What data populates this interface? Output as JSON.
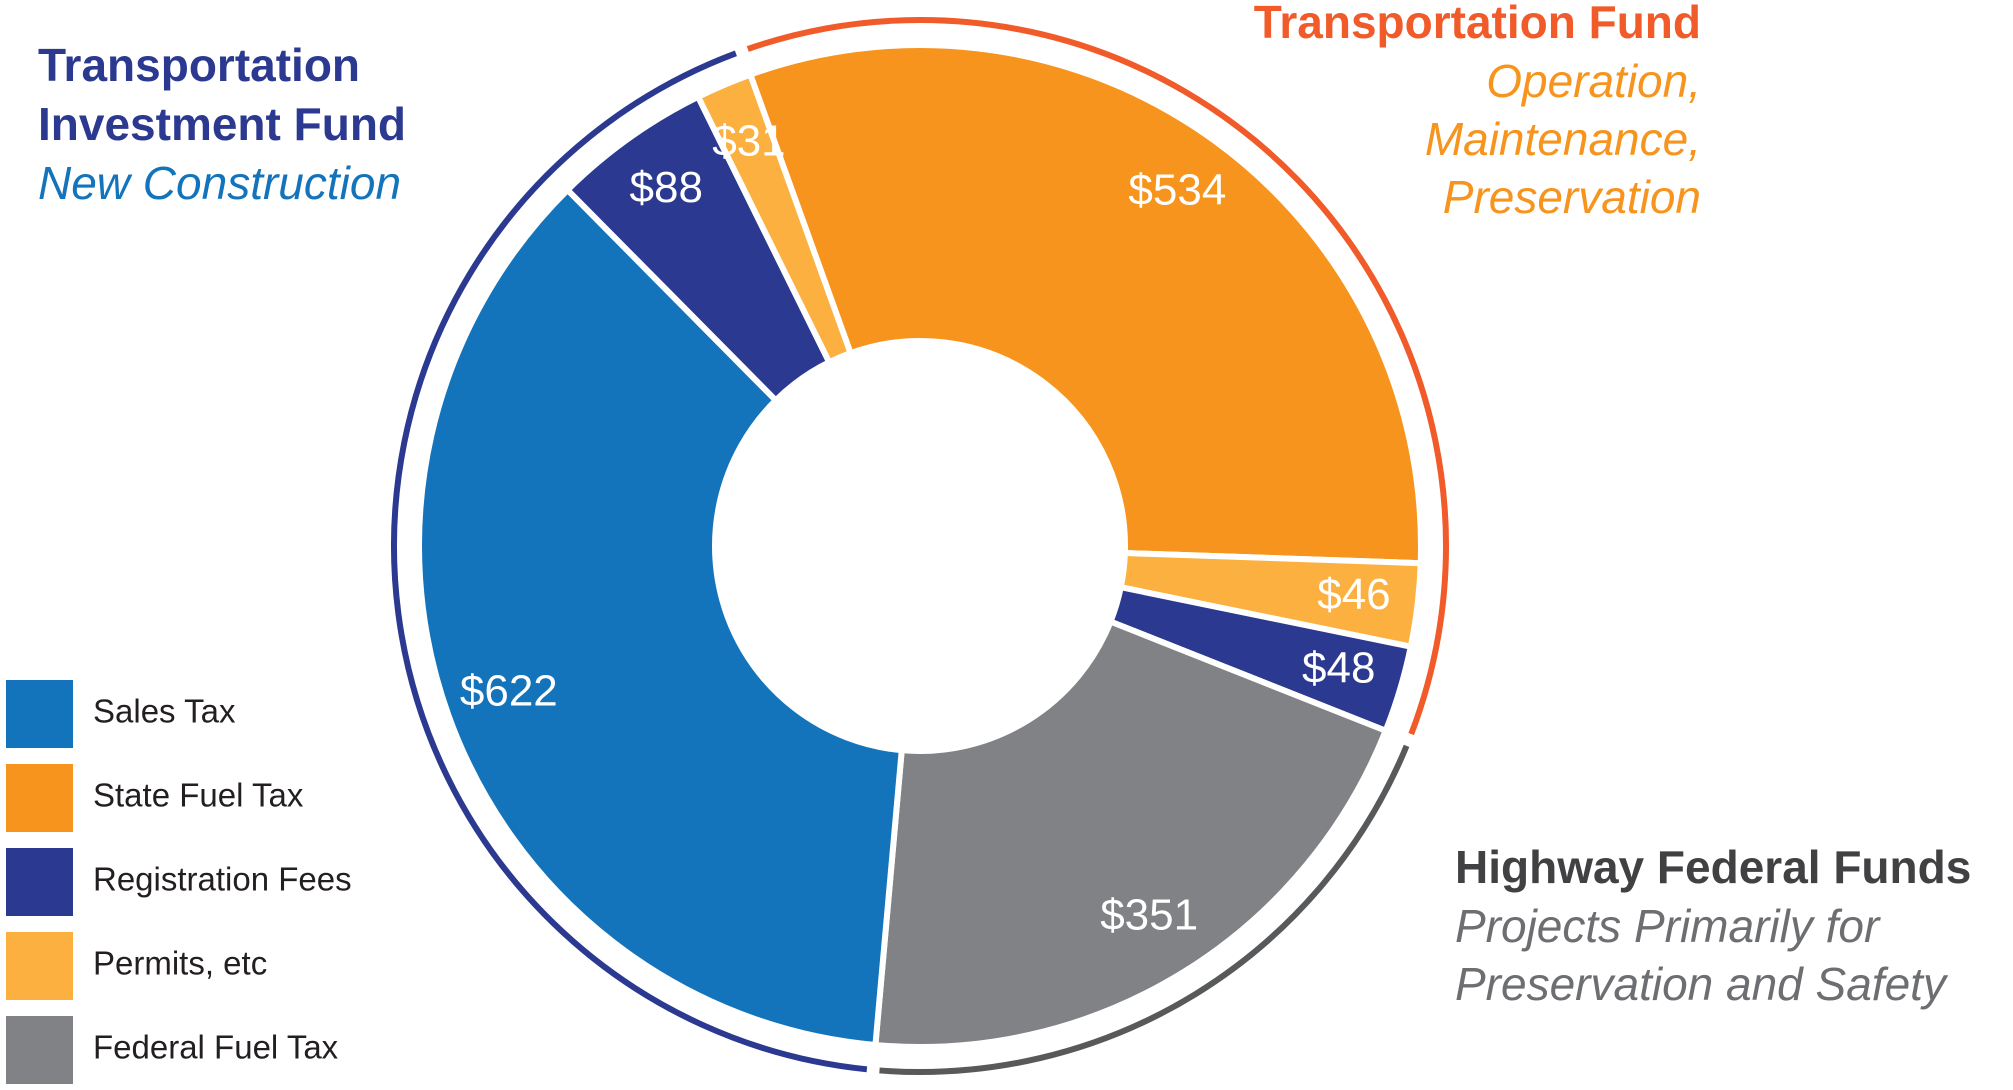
{
  "chart_data": {
    "type": "donut",
    "legend": [
      {
        "name": "Sales Tax",
        "color": "#1474bb"
      },
      {
        "name": "State Fuel Tax",
        "color": "#f7941d"
      },
      {
        "name": "Registration Fees",
        "color": "#2b3990"
      },
      {
        "name": "Permits, etc",
        "color": "#fbb040"
      },
      {
        "name": "Federal Fuel Tax",
        "color": "#808285"
      }
    ],
    "funds": [
      {
        "title_lines": [
          "Transportation Fund"
        ],
        "subtitle_lines": [
          "Operation,",
          "Maintenance,",
          "Preservation"
        ],
        "title_color": "#f15a29",
        "subtitle_color": "#f7941d",
        "ring_color": "#f15a29",
        "slices": [
          {
            "value": 534,
            "value_label": "$534",
            "color": "#f7941d"
          },
          {
            "value": 46,
            "value_label": "$46",
            "color": "#fbb040"
          },
          {
            "value": 48,
            "value_label": "$48",
            "color": "#2b3990"
          }
        ]
      },
      {
        "title_lines": [
          "Highway Federal Funds"
        ],
        "subtitle_lines": [
          "Projects Primarily for",
          "Preservation and Safety"
        ],
        "title_color": "#414042",
        "subtitle_color": "#6d6e71",
        "ring_color": "#58595b",
        "slices": [
          {
            "value": 351,
            "value_label": "$351",
            "color": "#808285"
          }
        ]
      },
      {
        "title_lines": [
          "Transportation",
          "Investment Fund"
        ],
        "subtitle_lines": [
          "New Construction"
        ],
        "title_color": "#2b3990",
        "subtitle_color": "#1474bb",
        "ring_color": "#2b3990",
        "slices": [
          {
            "value": 622,
            "value_label": "$622",
            "color": "#1474bb"
          },
          {
            "value": 88,
            "value_label": "$88",
            "color": "#2b3990"
          },
          {
            "value": 31,
            "value_label": "$31",
            "color": "#fbb040"
          }
        ]
      }
    ]
  }
}
